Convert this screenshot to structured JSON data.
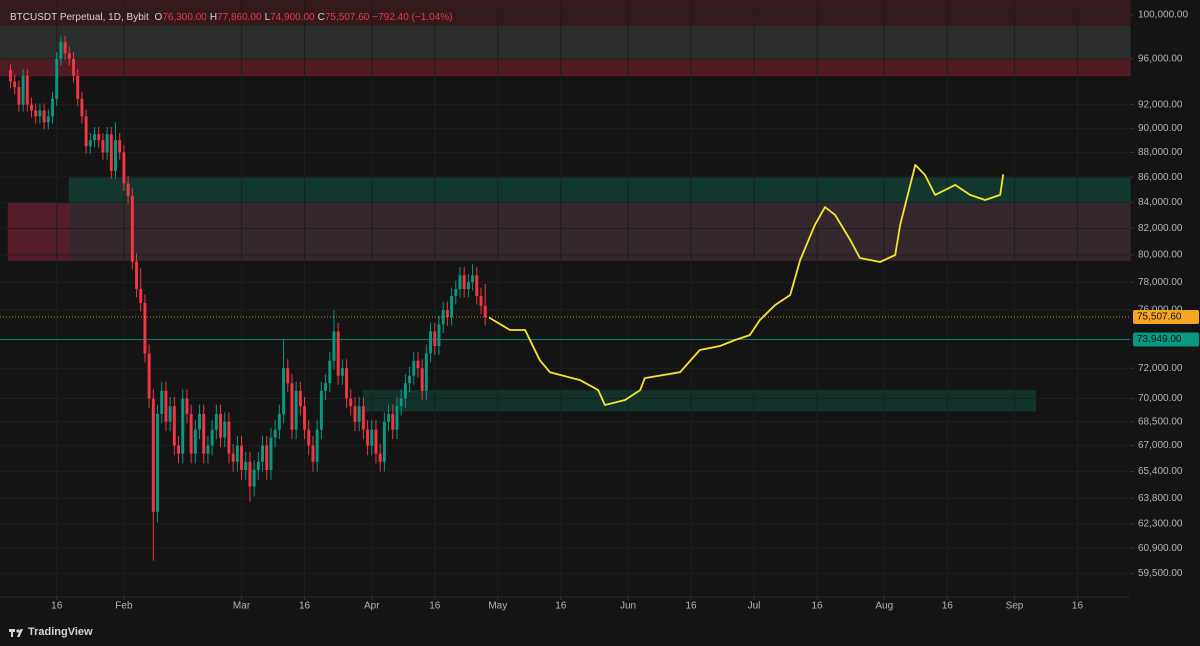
{
  "chart_data": {
    "type": "candlestick",
    "symbol": "BTCUSDT Perpetual, 1D, Bybit",
    "ohlc": [
      {
        "key": "O",
        "value": "76,300.00"
      },
      {
        "key": "H",
        "value": "77,860.00"
      },
      {
        "key": "L",
        "value": "74,900.00"
      },
      {
        "key": "C",
        "value": "75,507.60"
      }
    ],
    "change": "−792.40 (−1.04%)",
    "up_color": "#089981",
    "down_color": "#f23645",
    "log_scale": true,
    "grid": true,
    "xlim": [
      1.5,
      270.5
    ],
    "ylim": [
      58200,
      101400
    ],
    "xticks": [
      {
        "value": 15,
        "label": "16"
      },
      {
        "value": 31,
        "label": "Feb"
      },
      {
        "value": 59,
        "label": "Mar"
      },
      {
        "value": 74,
        "label": "16"
      },
      {
        "value": 90,
        "label": "Apr"
      },
      {
        "value": 105,
        "label": "16"
      },
      {
        "value": 120,
        "label": "May"
      },
      {
        "value": 135,
        "label": "16"
      },
      {
        "value": 151,
        "label": "Jun"
      },
      {
        "value": 166,
        "label": "16"
      },
      {
        "value": 181,
        "label": "Jul"
      },
      {
        "value": 196,
        "label": "16"
      },
      {
        "value": 212,
        "label": "Aug"
      },
      {
        "value": 227,
        "label": "16"
      },
      {
        "value": 243,
        "label": "Sep"
      },
      {
        "value": 258,
        "label": "16"
      }
    ],
    "yticks": [
      {
        "value": 100000,
        "label": "100,000.00"
      },
      {
        "value": 96000,
        "label": "96,000.00"
      },
      {
        "value": 92000,
        "label": "92,000.00"
      },
      {
        "value": 90000,
        "label": "90,000.00"
      },
      {
        "value": 88000,
        "label": "88,000.00"
      },
      {
        "value": 86000,
        "label": "86,000.00"
      },
      {
        "value": 84000,
        "label": "84,000.00"
      },
      {
        "value": 82000,
        "label": "82,000.00"
      },
      {
        "value": 80000,
        "label": "80,000.00"
      },
      {
        "value": 78000,
        "label": "78,000.00"
      },
      {
        "value": 76000,
        "label": "76,000.00"
      },
      {
        "value": 72000,
        "label": "72,000.00"
      },
      {
        "value": 70000,
        "label": "70,000.00"
      },
      {
        "value": 68500,
        "label": "68,500.00"
      },
      {
        "value": 67000,
        "label": "67,000.00"
      },
      {
        "value": 65400,
        "label": "65,400.00"
      },
      {
        "value": 63800,
        "label": "63,800.00"
      },
      {
        "value": 62300,
        "label": "62,300.00"
      },
      {
        "value": 60900,
        "label": "60,900.00"
      },
      {
        "value": 59500,
        "label": "59,500.00"
      }
    ],
    "x": [
      4,
      5,
      6,
      7,
      8,
      9,
      10,
      11,
      12,
      13,
      14,
      15,
      16,
      17,
      18,
      19,
      20,
      21,
      22,
      23,
      24,
      25,
      26,
      27,
      28,
      29,
      30,
      31,
      32,
      33,
      34,
      35,
      36,
      37,
      38,
      39,
      40,
      41,
      42,
      43,
      44,
      45,
      46,
      47,
      48,
      49,
      50,
      51,
      52,
      53,
      54,
      55,
      56,
      57,
      58,
      59,
      60,
      61,
      62,
      63,
      64,
      65,
      66,
      67,
      68,
      69,
      70,
      71,
      72,
      73,
      74,
      75,
      76,
      77,
      78,
      79,
      80,
      81,
      82,
      83,
      84,
      85,
      86,
      87,
      88,
      89,
      90,
      91,
      92,
      93,
      94,
      95,
      96,
      97,
      98,
      99,
      100,
      101,
      102,
      103,
      104,
      105,
      106,
      107,
      108,
      109,
      110,
      111,
      112,
      113,
      114,
      115,
      116,
      117
    ],
    "open": [
      95000,
      94000,
      93500,
      92000,
      94500,
      92000,
      91500,
      91000,
      91500,
      90500,
      91000,
      92500,
      96000,
      97500,
      96500,
      96000,
      94500,
      92500,
      91000,
      88500,
      89000,
      89500,
      89000,
      88000,
      89500,
      86500,
      89000,
      88000,
      85500,
      84500,
      79500,
      77500,
      76500,
      73000,
      70000,
      63000,
      69000,
      70500,
      68500,
      69500,
      67000,
      66500,
      70000,
      69000,
      66500,
      68000,
      69000,
      66500,
      67000,
      68000,
      69000,
      67500,
      68500,
      66500,
      66000,
      67000,
      65500,
      66000,
      64500,
      65500,
      66000,
      67000,
      65500,
      67500,
      68000,
      69000,
      72000,
      71000,
      68000,
      70500,
      69500,
      68000,
      67000,
      66000,
      68000,
      70500,
      71000,
      72500,
      74500,
      71500,
      72000,
      70000,
      69500,
      68500,
      69500,
      68000,
      67000,
      68000,
      66500,
      66000,
      68500,
      69000,
      68000,
      69500,
      70000,
      71000,
      71500,
      72500,
      72000,
      70500,
      73000,
      74500,
      73500,
      75000,
      76000,
      75500,
      77000,
      77500,
      78500,
      77500,
      78000,
      78500,
      77000,
      76300
    ],
    "high": [
      95500,
      94600,
      94100,
      95100,
      95100,
      92600,
      92100,
      92100,
      92100,
      91600,
      93100,
      96600,
      98000,
      98100,
      97100,
      96600,
      95100,
      93100,
      91600,
      89600,
      90100,
      90100,
      89600,
      90100,
      90100,
      90500,
      89600,
      88600,
      86100,
      85100,
      80100,
      79000,
      77100,
      73600,
      70600,
      69600,
      71100,
      71100,
      70100,
      70100,
      67600,
      70600,
      70600,
      69600,
      68600,
      69600,
      69600,
      67600,
      68600,
      69600,
      69600,
      69100,
      69100,
      67100,
      67600,
      67600,
      66600,
      66600,
      66100,
      66600,
      67600,
      67600,
      68100,
      68600,
      69600,
      74000,
      72600,
      71600,
      71100,
      71100,
      70100,
      68600,
      67600,
      68600,
      71100,
      71600,
      73100,
      76000,
      75100,
      72600,
      72600,
      70600,
      70100,
      70100,
      70100,
      68600,
      68600,
      68600,
      67100,
      69100,
      69600,
      69600,
      70100,
      70600,
      71600,
      72100,
      73100,
      73100,
      72600,
      73600,
      75100,
      75100,
      75600,
      76600,
      76600,
      77600,
      78100,
      79100,
      79100,
      78600,
      79300,
      79100,
      77600,
      77860
    ],
    "low": [
      93400,
      92900,
      91400,
      91400,
      91400,
      90900,
      90400,
      90400,
      89900,
      89900,
      90400,
      91900,
      95400,
      95900,
      95400,
      93900,
      91900,
      90400,
      87900,
      87900,
      88400,
      88400,
      87400,
      87400,
      85900,
      85900,
      87400,
      84900,
      83900,
      78900,
      76900,
      75900,
      72400,
      69400,
      60200,
      62400,
      68400,
      67900,
      67900,
      66400,
      65900,
      65900,
      68400,
      65900,
      65900,
      67400,
      65900,
      65900,
      66400,
      67400,
      66900,
      66900,
      65900,
      65400,
      65400,
      64900,
      64900,
      63600,
      63900,
      64900,
      65400,
      64900,
      64900,
      66900,
      67400,
      68400,
      70400,
      67400,
      67400,
      68900,
      67400,
      66400,
      65400,
      65400,
      67400,
      69900,
      70400,
      71900,
      70900,
      70900,
      69400,
      68900,
      67900,
      67900,
      67400,
      66400,
      66400,
      65900,
      65400,
      65400,
      67900,
      67400,
      67400,
      68900,
      69400,
      70400,
      70900,
      71400,
      69900,
      69900,
      72400,
      72900,
      72900,
      74400,
      74900,
      74900,
      76400,
      76900,
      76900,
      76900,
      77400,
      76400,
      75700,
      74900
    ],
    "close": [
      94000,
      93500,
      92000,
      94500,
      92000,
      91500,
      91000,
      91500,
      90500,
      91000,
      92500,
      96000,
      97500,
      96500,
      96000,
      94500,
      92500,
      91000,
      88500,
      89000,
      89500,
      89000,
      88000,
      89500,
      86500,
      89000,
      88000,
      85500,
      84500,
      79500,
      77500,
      76500,
      73000,
      70000,
      63000,
      69000,
      70500,
      68500,
      69500,
      67000,
      66500,
      70000,
      69000,
      66500,
      68000,
      69000,
      66500,
      67000,
      68000,
      69000,
      67500,
      68500,
      66500,
      66000,
      67000,
      65500,
      66000,
      64500,
      65500,
      66000,
      67000,
      65500,
      67500,
      68000,
      69000,
      72000,
      71000,
      68000,
      70500,
      69500,
      68000,
      67000,
      66000,
      68000,
      70500,
      71000,
      72500,
      74500,
      71500,
      72000,
      70000,
      69500,
      68500,
      69500,
      68000,
      67000,
      68000,
      66500,
      66000,
      68500,
      69000,
      68000,
      69500,
      70000,
      71000,
      71500,
      72500,
      72000,
      70500,
      73000,
      74500,
      73500,
      75000,
      76000,
      75500,
      77000,
      77500,
      78500,
      77500,
      78000,
      78500,
      77000,
      76300,
      75507.6
    ],
    "zones": [
      {
        "low": 98900,
        "high": 101400,
        "start": 1.5,
        "end": 270.5,
        "color": "#3a1a1e"
      },
      {
        "low": 96000,
        "high": 98900,
        "start": 1.5,
        "end": 270.5,
        "color": "#2f3330"
      },
      {
        "low": 94500,
        "high": 96000,
        "start": 1.5,
        "end": 270.5,
        "color": "#5a1c24"
      },
      {
        "low": 83900,
        "high": 86000,
        "start": 18,
        "end": 270.5,
        "color": "#123d33"
      },
      {
        "low": 79600,
        "high": 83900,
        "start": 3.5,
        "end": 270.5,
        "color": "#3a2a31"
      },
      {
        "low": 79600,
        "high": 83900,
        "start": 3.5,
        "end": 18,
        "color": "#5a1c2a"
      },
      {
        "low": 69200,
        "high": 70500,
        "start": 88,
        "end": 248,
        "color": "#12382f"
      }
    ],
    "price_lines": [
      {
        "value": 75507.6,
        "label": "75,507.60",
        "color": "#f5a623"
      },
      {
        "value": 73949,
        "label": "73,949.00",
        "color": "#089981"
      }
    ],
    "projection": {
      "color": "#f5e62a",
      "x": [
        118.1,
        122.9,
        126.5,
        130,
        132.4,
        139.6,
        143.9,
        145.5,
        150.3,
        153.9,
        155,
        163.4,
        168.1,
        172.9,
        176.5,
        180,
        182.4,
        186,
        189.6,
        192,
        195.5,
        197.9,
        200.3,
        203.9,
        206.2,
        211,
        214.6,
        215.8,
        219.4,
        221.7,
        224.1,
        228.9,
        232.4,
        236,
        239.6,
        240.3
      ],
      "values": [
        75440,
        74600,
        74600,
        72540,
        71730,
        71210,
        70550,
        69580,
        69900,
        70550,
        71340,
        71730,
        73230,
        73500,
        73910,
        74250,
        75300,
        76350,
        77070,
        79620,
        82260,
        83640,
        83030,
        81120,
        79770,
        79470,
        79990,
        82260,
        86980,
        86170,
        84590,
        85380,
        84590,
        84190,
        84590,
        86170
      ]
    }
  },
  "brand": "TradingView"
}
